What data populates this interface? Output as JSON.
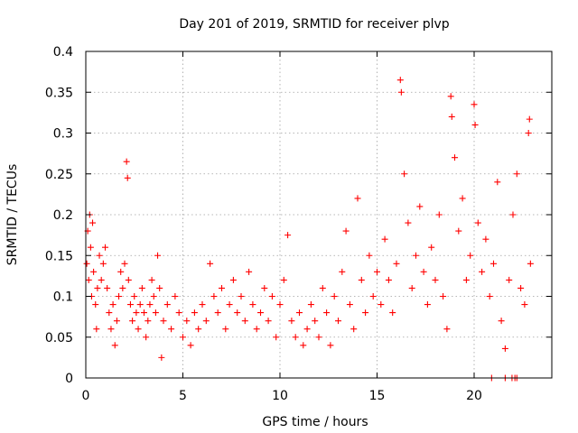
{
  "chart_data": {
    "type": "scatter",
    "title": "Day 201 of 2019, SRMTID for receiver plvp",
    "xlabel": "GPS time / hours",
    "ylabel": "SRMTID / TECUs",
    "xlim": [
      0,
      24
    ],
    "ylim": [
      0,
      0.4
    ],
    "x_ticks": [
      0,
      5,
      10,
      15,
      20
    ],
    "x_tick_labels": [
      "0",
      "5",
      "10",
      "15",
      "20"
    ],
    "y_ticks": [
      0,
      0.05,
      0.1,
      0.15,
      0.2,
      0.25,
      0.3,
      0.35,
      0.4
    ],
    "y_tick_labels": [
      "0",
      "0.05",
      "0.1",
      "0.15",
      "0.2",
      "0.25",
      "0.3",
      "0.35",
      "0.4"
    ],
    "grid": true,
    "marker": "+",
    "marker_color": "#ff0000",
    "series": [
      {
        "points": [
          [
            0.05,
            0.14
          ],
          [
            0.1,
            0.18
          ],
          [
            0.15,
            0.12
          ],
          [
            0.2,
            0.2
          ],
          [
            0.25,
            0.16
          ],
          [
            0.3,
            0.1
          ],
          [
            0.35,
            0.19
          ],
          [
            0.4,
            0.13
          ],
          [
            0.5,
            0.09
          ],
          [
            0.55,
            0.06
          ],
          [
            0.6,
            0.11
          ],
          [
            0.7,
            0.15
          ],
          [
            0.8,
            0.12
          ],
          [
            0.9,
            0.14
          ],
          [
            1.0,
            0.16
          ],
          [
            1.1,
            0.11
          ],
          [
            1.2,
            0.08
          ],
          [
            1.3,
            0.06
          ],
          [
            1.4,
            0.09
          ],
          [
            1.5,
            0.04
          ],
          [
            1.6,
            0.07
          ],
          [
            1.7,
            0.1
          ],
          [
            1.8,
            0.13
          ],
          [
            1.9,
            0.11
          ],
          [
            2.0,
            0.14
          ],
          [
            2.1,
            0.265
          ],
          [
            2.15,
            0.245
          ],
          [
            2.2,
            0.12
          ],
          [
            2.3,
            0.09
          ],
          [
            2.4,
            0.07
          ],
          [
            2.5,
            0.1
          ],
          [
            2.6,
            0.08
          ],
          [
            2.7,
            0.06
          ],
          [
            2.8,
            0.09
          ],
          [
            2.9,
            0.11
          ],
          [
            3.0,
            0.08
          ],
          [
            3.1,
            0.05
          ],
          [
            3.2,
            0.07
          ],
          [
            3.3,
            0.09
          ],
          [
            3.4,
            0.12
          ],
          [
            3.5,
            0.1
          ],
          [
            3.6,
            0.08
          ],
          [
            3.7,
            0.15
          ],
          [
            3.8,
            0.11
          ],
          [
            3.9,
            0.025
          ],
          [
            4.0,
            0.07
          ],
          [
            4.2,
            0.09
          ],
          [
            4.4,
            0.06
          ],
          [
            4.6,
            0.1
          ],
          [
            4.8,
            0.08
          ],
          [
            5.0,
            0.05
          ],
          [
            5.2,
            0.07
          ],
          [
            5.4,
            0.04
          ],
          [
            5.6,
            0.08
          ],
          [
            5.8,
            0.06
          ],
          [
            6.0,
            0.09
          ],
          [
            6.2,
            0.07
          ],
          [
            6.4,
            0.14
          ],
          [
            6.6,
            0.1
          ],
          [
            6.8,
            0.08
          ],
          [
            7.0,
            0.11
          ],
          [
            7.2,
            0.06
          ],
          [
            7.4,
            0.09
          ],
          [
            7.6,
            0.12
          ],
          [
            7.8,
            0.08
          ],
          [
            8.0,
            0.1
          ],
          [
            8.2,
            0.07
          ],
          [
            8.4,
            0.13
          ],
          [
            8.6,
            0.09
          ],
          [
            8.8,
            0.06
          ],
          [
            9.0,
            0.08
          ],
          [
            9.2,
            0.11
          ],
          [
            9.4,
            0.07
          ],
          [
            9.6,
            0.1
          ],
          [
            9.8,
            0.05
          ],
          [
            10.0,
            0.09
          ],
          [
            10.2,
            0.12
          ],
          [
            10.4,
            0.175
          ],
          [
            10.6,
            0.07
          ],
          [
            10.8,
            0.05
          ],
          [
            11.0,
            0.08
          ],
          [
            11.2,
            0.04
          ],
          [
            11.4,
            0.06
          ],
          [
            11.6,
            0.09
          ],
          [
            11.8,
            0.07
          ],
          [
            12.0,
            0.05
          ],
          [
            12.2,
            0.11
          ],
          [
            12.4,
            0.08
          ],
          [
            12.6,
            0.04
          ],
          [
            12.8,
            0.1
          ],
          [
            13.0,
            0.07
          ],
          [
            13.2,
            0.13
          ],
          [
            13.4,
            0.18
          ],
          [
            13.6,
            0.09
          ],
          [
            13.8,
            0.06
          ],
          [
            14.0,
            0.22
          ],
          [
            14.2,
            0.12
          ],
          [
            14.4,
            0.08
          ],
          [
            14.6,
            0.15
          ],
          [
            14.8,
            0.1
          ],
          [
            15.0,
            0.13
          ],
          [
            15.2,
            0.09
          ],
          [
            15.4,
            0.17
          ],
          [
            15.6,
            0.12
          ],
          [
            15.8,
            0.08
          ],
          [
            16.0,
            0.14
          ],
          [
            16.2,
            0.365
          ],
          [
            16.25,
            0.35
          ],
          [
            16.4,
            0.25
          ],
          [
            16.6,
            0.19
          ],
          [
            16.8,
            0.11
          ],
          [
            17.0,
            0.15
          ],
          [
            17.2,
            0.21
          ],
          [
            17.4,
            0.13
          ],
          [
            17.6,
            0.09
          ],
          [
            17.8,
            0.16
          ],
          [
            18.0,
            0.12
          ],
          [
            18.2,
            0.2
          ],
          [
            18.4,
            0.1
          ],
          [
            18.6,
            0.06
          ],
          [
            18.8,
            0.345
          ],
          [
            18.85,
            0.32
          ],
          [
            19.0,
            0.27
          ],
          [
            19.2,
            0.18
          ],
          [
            19.4,
            0.22
          ],
          [
            19.6,
            0.12
          ],
          [
            19.8,
            0.15
          ],
          [
            20.0,
            0.335
          ],
          [
            20.05,
            0.31
          ],
          [
            20.2,
            0.19
          ],
          [
            20.4,
            0.13
          ],
          [
            20.6,
            0.17
          ],
          [
            20.8,
            0.1
          ],
          [
            21.0,
            0.14
          ],
          [
            21.2,
            0.24
          ],
          [
            21.4,
            0.07
          ],
          [
            21.6,
            0.036
          ],
          [
            21.8,
            0.12
          ],
          [
            22.0,
            0.2
          ],
          [
            22.2,
            0.25
          ],
          [
            22.4,
            0.11
          ],
          [
            22.6,
            0.09
          ],
          [
            22.8,
            0.3
          ],
          [
            22.85,
            0.317
          ],
          [
            22.9,
            0.14
          ],
          [
            20.9,
            0.0
          ],
          [
            21.6,
            0.0
          ],
          [
            21.95,
            0.0
          ],
          [
            22.1,
            0.0
          ],
          [
            22.2,
            0.0
          ]
        ]
      }
    ]
  }
}
